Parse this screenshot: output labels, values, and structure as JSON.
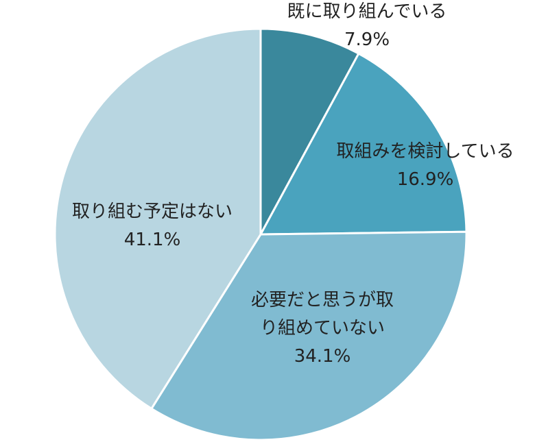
{
  "chart_data": {
    "type": "pie",
    "categories": [
      "既に取り組んでいる",
      "取組みを検討している",
      "必要だと思うが取り組めていない",
      "取り組む予定はない"
    ],
    "values": [
      7.9,
      16.9,
      34.1,
      41.1
    ],
    "value_labels": [
      "7.9%",
      "16.9%",
      "34.1%",
      "41.1%"
    ],
    "colors": [
      "#3a889c",
      "#4aa3be",
      "#80bbd1",
      "#b8d6e1"
    ]
  }
}
